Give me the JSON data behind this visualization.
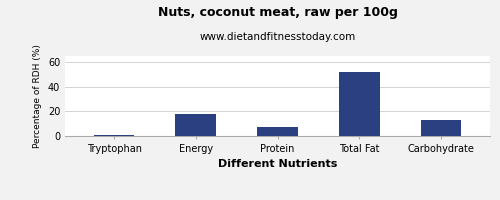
{
  "title": "Nuts, coconut meat, raw per 100g",
  "subtitle": "www.dietandfitnesstoday.com",
  "xlabel": "Different Nutrients",
  "ylabel": "Percentage of RDH (%)",
  "categories": [
    "Tryptophan",
    "Energy",
    "Protein",
    "Total Fat",
    "Carbohydrate"
  ],
  "values": [
    0.5,
    18,
    7,
    52,
    13
  ],
  "bar_color": "#2a4080",
  "ylim": [
    0,
    65
  ],
  "yticks": [
    0,
    20,
    40,
    60
  ],
  "background_color": "#f2f2f2",
  "plot_background": "#ffffff",
  "title_fontsize": 9,
  "subtitle_fontsize": 7.5,
  "xlabel_fontsize": 8,
  "ylabel_fontsize": 6.5,
  "tick_fontsize": 7
}
